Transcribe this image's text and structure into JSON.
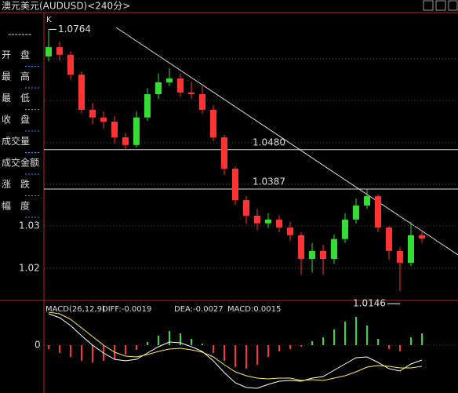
{
  "header": {
    "title": "澳元美元(AUDUSD)<240分>",
    "corner": "K"
  },
  "sidebar": [
    "-------",
    "开　盘",
    "最　高",
    "最　低",
    "收　盘",
    "成交量",
    "成交金额",
    "涨　跌",
    "幅　度"
  ],
  "chart_data": [
    {
      "type": "candlestick",
      "ylim": [
        1.0124,
        1.08
      ],
      "yticks": [
        1.02,
        1.03
      ],
      "up_color": "#33dd33",
      "down_color": "#ff3333",
      "levels": [
        {
          "value": 1.048,
          "label": "1.0480"
        },
        {
          "value": 1.0387,
          "label": "1.0387"
        }
      ],
      "high_label": {
        "value": 1.0764,
        "label": "1.0764"
      },
      "low_label": {
        "value": 1.0146,
        "label": "1.0146"
      },
      "open": [
        1.07,
        1.0722,
        1.0704,
        1.0657,
        1.0574,
        1.0556,
        1.0546,
        1.0509,
        1.0491,
        1.0556,
        1.0611,
        1.0639,
        1.0648,
        1.0615,
        1.0611,
        1.0574,
        1.0509,
        1.0435,
        1.0361,
        1.0324,
        1.0306,
        1.0315,
        1.0296,
        1.0278,
        1.0222,
        1.0241,
        1.0222,
        1.0269,
        1.0315,
        1.0348,
        1.037,
        1.0296,
        1.0241,
        1.0213,
        1.0278
      ],
      "high": [
        1.0764,
        1.0735,
        1.0712,
        1.0665,
        1.059,
        1.057,
        1.056,
        1.052,
        1.057,
        1.0625,
        1.066,
        1.0672,
        1.066,
        1.064,
        1.063,
        1.0585,
        1.0515,
        1.044,
        1.037,
        1.034,
        1.033,
        1.0325,
        1.031,
        1.0285,
        1.026,
        1.0255,
        1.028,
        1.033,
        1.0365,
        1.0387,
        1.0375,
        1.03,
        1.025,
        1.031,
        1.029
      ],
      "low": [
        1.0688,
        1.069,
        1.0645,
        1.0565,
        1.054,
        1.053,
        1.0495,
        1.048,
        1.0485,
        1.0548,
        1.06,
        1.063,
        1.0605,
        1.06,
        1.0565,
        1.05,
        1.042,
        1.035,
        1.0305,
        1.029,
        1.0295,
        1.0285,
        1.0265,
        1.0185,
        1.019,
        1.0185,
        1.021,
        1.026,
        1.0305,
        1.034,
        1.0285,
        1.022,
        1.0146,
        1.0205,
        1.026
      ],
      "close": [
        1.0722,
        1.0704,
        1.0657,
        1.0574,
        1.0556,
        1.0546,
        1.0509,
        1.0491,
        1.0556,
        1.0611,
        1.0639,
        1.0648,
        1.0615,
        1.0611,
        1.0574,
        1.0509,
        1.0435,
        1.0361,
        1.0324,
        1.0306,
        1.0315,
        1.0296,
        1.0278,
        1.0222,
        1.0241,
        1.0222,
        1.0269,
        1.0315,
        1.0348,
        1.037,
        1.0296,
        1.0241,
        1.0213,
        1.0278,
        1.027
      ]
    },
    {
      "type": "macd",
      "title": "MACD(26,12,9)",
      "indicator_labels": [
        "DIFF:-0.0019",
        "DEA:-0.0027",
        "MACD:0.0015"
      ],
      "ylim": [
        -0.0061,
        0.0054
      ],
      "yticks": [
        0
      ],
      "hist_up_color": "#33dd33",
      "hist_down_color": "#ff3333",
      "histogram": [
        -0.0005,
        -0.001,
        -0.0015,
        -0.002,
        -0.0022,
        -0.002,
        -0.0018,
        -0.0012,
        -0.0006,
        0.0004,
        0.0012,
        0.0018,
        0.0015,
        0.0008,
        0.0002,
        -0.001,
        -0.002,
        -0.0028,
        -0.003,
        -0.0025,
        -0.0015,
        -0.0008,
        -0.0005,
        -0.0002,
        0.0005,
        0.001,
        0.002,
        0.003,
        0.0036,
        0.0025,
        0.0008,
        -0.0005,
        -0.0008,
        0.001,
        0.0015
      ],
      "series": [
        {
          "name": "DIFF",
          "color": "#ffffff",
          "values": [
            0.004,
            0.0035,
            0.0025,
            0.0012,
            0.0,
            -0.001,
            -0.0018,
            -0.002,
            -0.0018,
            -0.001,
            -0.0002,
            0.0004,
            0.0003,
            -0.0002,
            -0.0008,
            -0.002,
            -0.0035,
            -0.0048,
            -0.0054,
            -0.0055,
            -0.005,
            -0.0046,
            -0.0045,
            -0.0046,
            -0.0042,
            -0.004,
            -0.0032,
            -0.0024,
            -0.0016,
            -0.0015,
            -0.0022,
            -0.003,
            -0.0033,
            -0.0024,
            -0.0019
          ]
        },
        {
          "name": "DEA",
          "color": "#ffee55",
          "values": [
            0.0042,
            0.004,
            0.0033,
            0.0022,
            0.0011,
            0.0,
            -0.0009,
            -0.0014,
            -0.0015,
            -0.0012,
            -0.0008,
            -0.0005,
            -0.0004,
            -0.0006,
            -0.0009,
            -0.0015,
            -0.0025,
            -0.0034,
            -0.0039,
            -0.0042,
            -0.0043,
            -0.0042,
            -0.0042,
            -0.0045,
            -0.0044,
            -0.0045,
            -0.0042,
            -0.0039,
            -0.0034,
            -0.0028,
            -0.0026,
            -0.0027,
            -0.0029,
            -0.0029,
            -0.0027
          ]
        }
      ]
    }
  ]
}
